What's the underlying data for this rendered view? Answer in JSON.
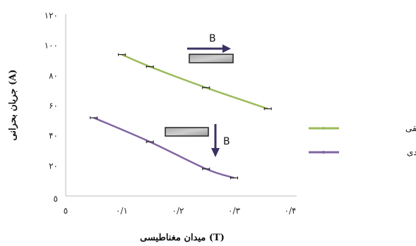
{
  "chart_data": {
    "type": "line",
    "xlabel": "میدان مغناطیسی (T)",
    "ylabel": "جریان بحرانی (A)",
    "xlim": [
      0,
      0.4
    ],
    "ylim": [
      0,
      120
    ],
    "x_ticks": [
      0,
      0.1,
      0.2,
      0.3,
      0.4
    ],
    "x_tick_labels": [
      "٥",
      "٠/١",
      "٠/٢",
      "٠/٣",
      "٠/۴"
    ],
    "y_ticks": [
      0,
      20,
      40,
      60,
      80,
      100,
      120
    ],
    "y_tick_labels": [
      "٥",
      "٢٠",
      "۴٠",
      "۶٠",
      "٨٠",
      "١٠٠",
      "١٢٠"
    ],
    "grid": false,
    "legend_position": "right",
    "series": [
      {
        "name": "مؤلفه‌ی افقی",
        "color": "#9bbb59",
        "x": [
          0.1,
          0.15,
          0.25,
          0.36
        ],
        "y": [
          94,
          86,
          72,
          58
        ]
      },
      {
        "name": "مؤلفه‌ی عمودی",
        "color": "#8064a2",
        "x": [
          0.05,
          0.15,
          0.25,
          0.3
        ],
        "y": [
          52,
          36,
          18,
          12
        ]
      }
    ],
    "annotations": [
      {
        "text": "B",
        "arrow": "right"
      },
      {
        "text": "B",
        "arrow": "down"
      }
    ]
  }
}
